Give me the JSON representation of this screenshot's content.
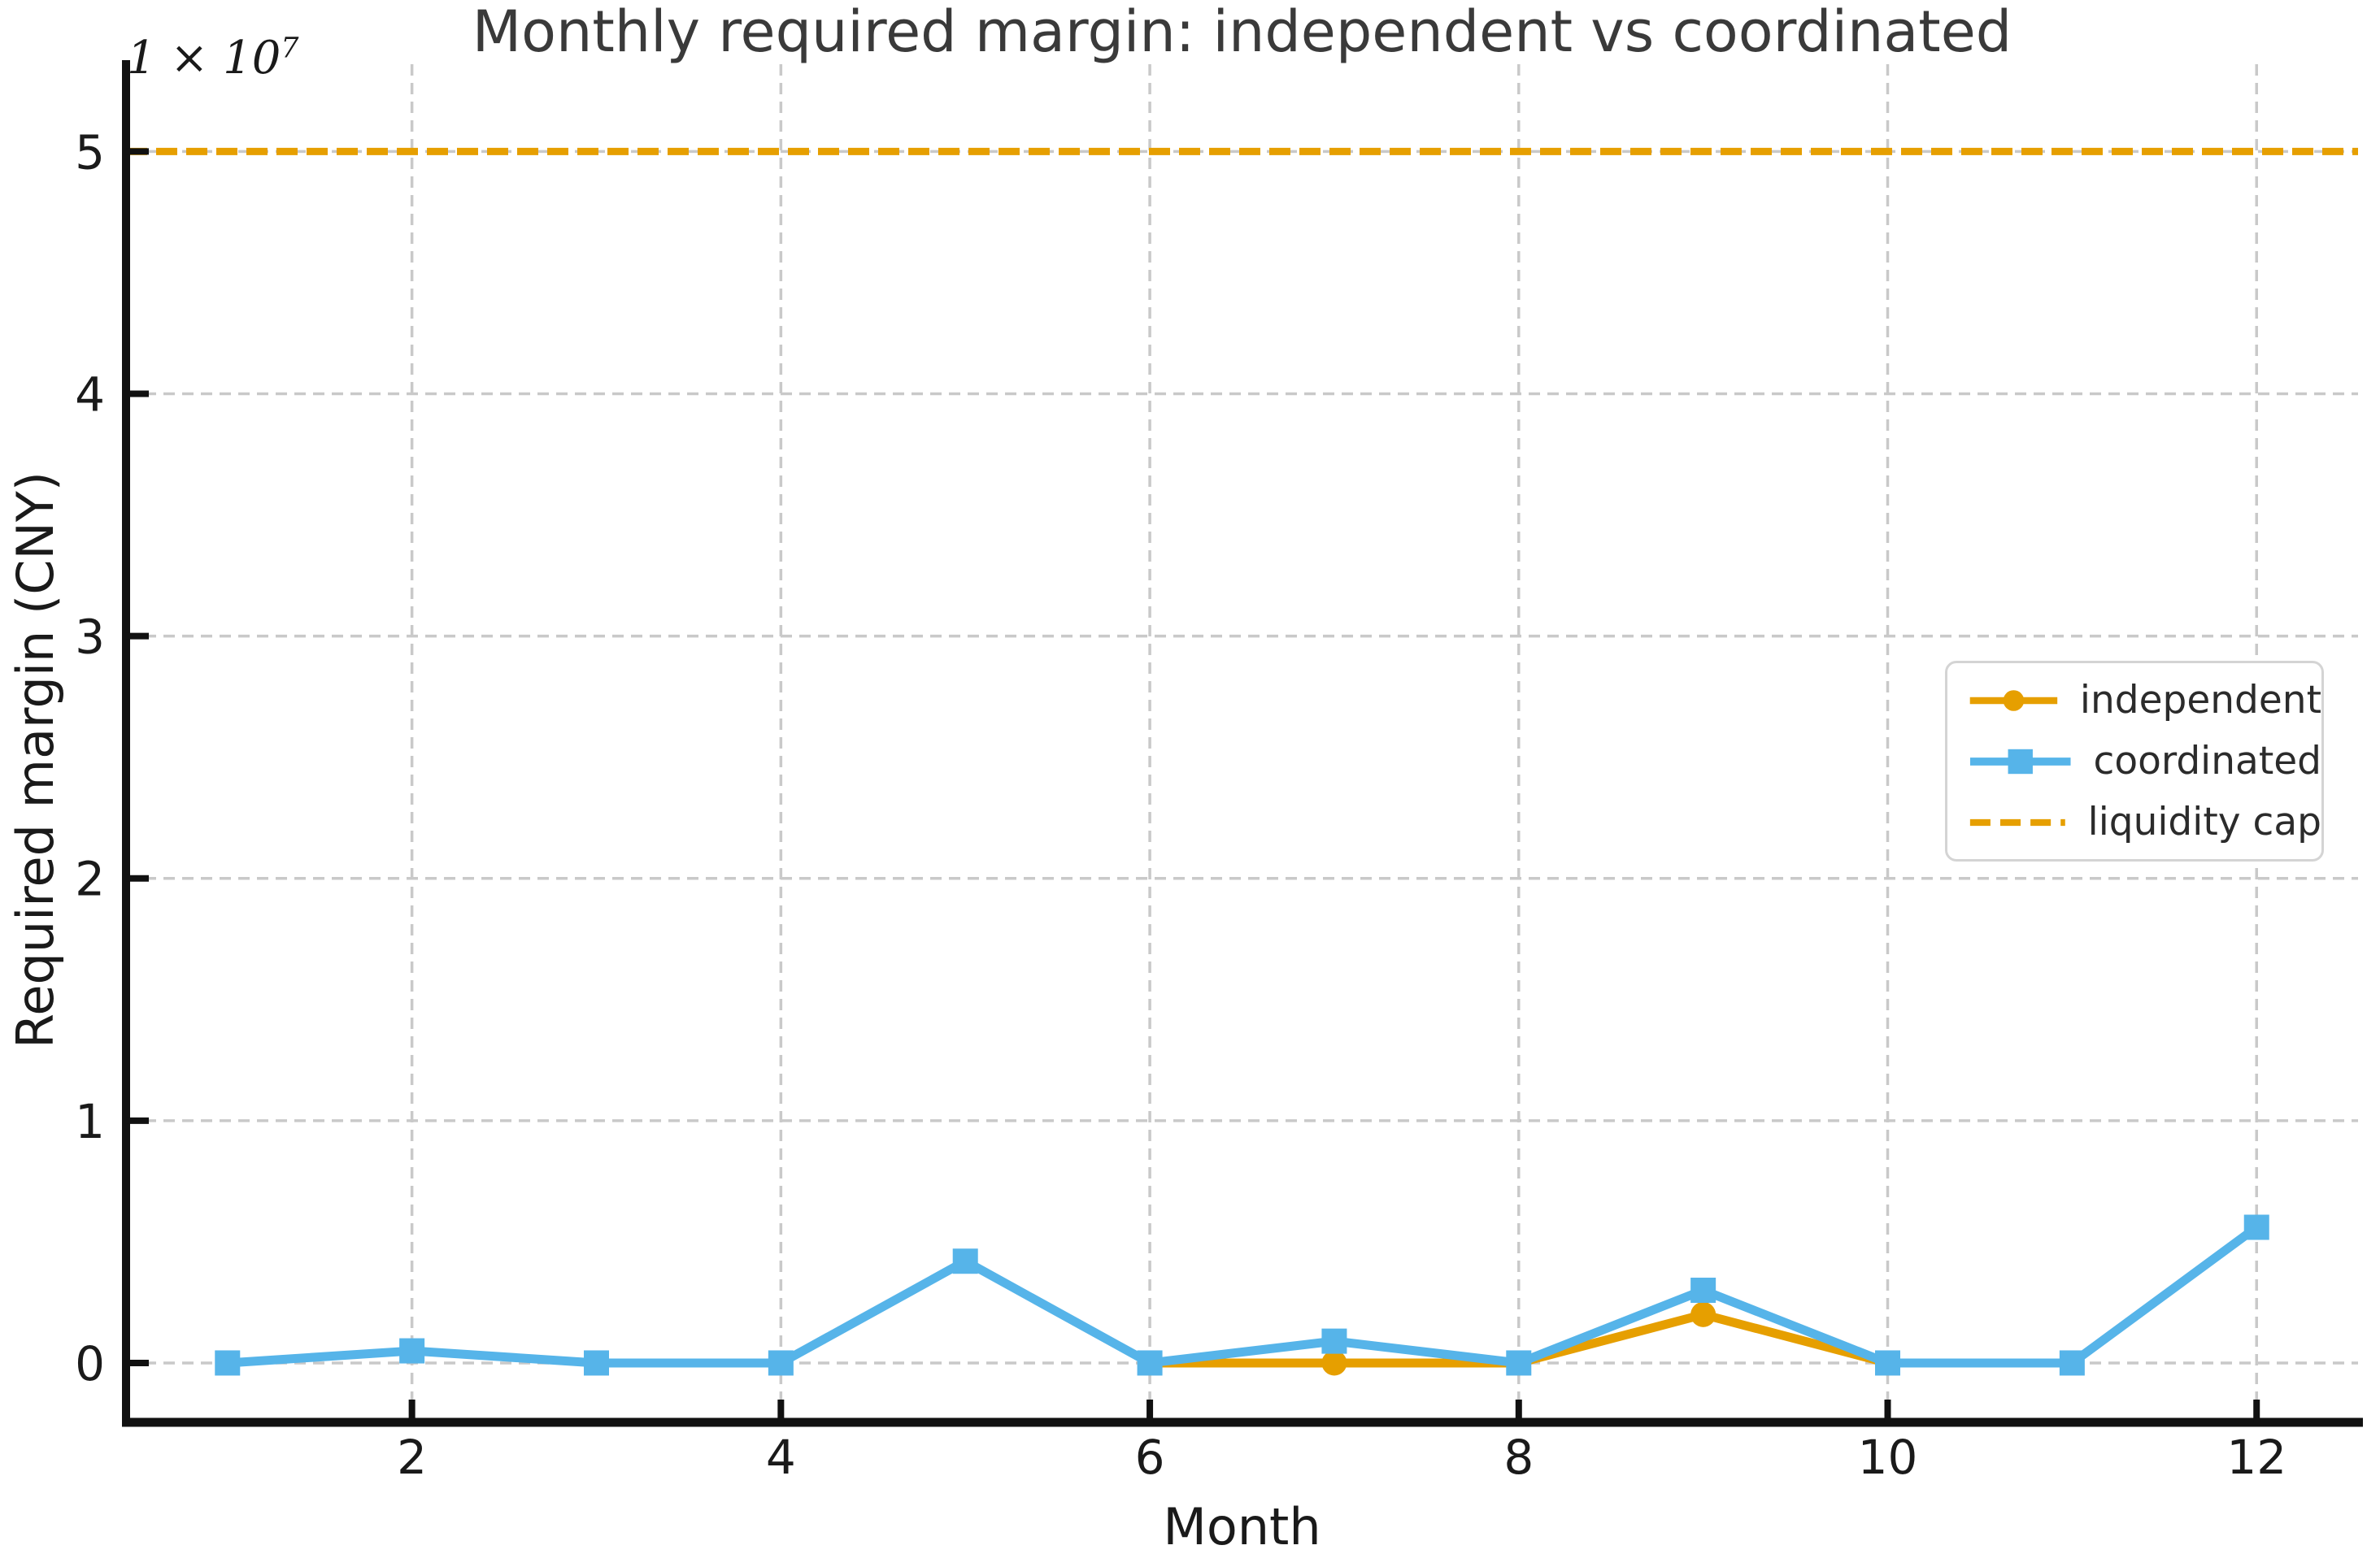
{
  "title": "Monthly required margin: independent vs coordinated",
  "axes": {
    "xlabel": "Month",
    "ylabel": "Required margin (CNY)",
    "offset_text": {
      "base": "1 × 10",
      "exponent": "7"
    }
  },
  "chart_data": {
    "type": "line",
    "title": "Monthly required margin: independent vs coordinated",
    "xlabel": "Month",
    "ylabel": "Required margin (CNY)",
    "x": [
      1,
      2,
      3,
      4,
      5,
      6,
      7,
      8,
      9,
      10,
      11,
      12
    ],
    "series": [
      {
        "name": "independent",
        "color": "#E69F00",
        "marker": "circle",
        "line_style": "solid",
        "values": [
          null,
          null,
          null,
          null,
          null,
          0,
          0,
          0,
          2000000,
          0,
          null,
          null
        ]
      },
      {
        "name": "coordinated",
        "color": "#56B4E9",
        "marker": "square",
        "line_style": "solid",
        "values": [
          0,
          500000,
          0,
          0,
          4200000,
          0,
          900000,
          0,
          3000000,
          0,
          0,
          5600000
        ]
      }
    ],
    "reference_lines": [
      {
        "name": "liquidity cap",
        "value": 50000000,
        "color": "#E69F00",
        "line_style": "dashed"
      }
    ],
    "xlim": [
      0.45,
      12.55
    ],
    "ylim": [
      -2450000,
      53600000
    ],
    "xticks": [
      2,
      4,
      6,
      8,
      10,
      12
    ],
    "xtick_labels": [
      "2",
      "4",
      "6",
      "8",
      "10",
      "12"
    ],
    "yticks": [
      0,
      10000000,
      20000000,
      30000000,
      40000000,
      50000000
    ],
    "ytick_labels": [
      "0",
      "1",
      "2",
      "3",
      "4",
      "5"
    ],
    "y_scale_factor": "1 × 10⁷",
    "grid": true,
    "legend_position": "center right"
  },
  "legend": {
    "entries": [
      {
        "label": "independent",
        "color": "#E69F00",
        "sample": "line-circle"
      },
      {
        "label": "coordinated",
        "color": "#56B4E9",
        "sample": "line-square"
      },
      {
        "label": "liquidity cap",
        "color": "#E69F00",
        "sample": "dashed-line"
      }
    ]
  },
  "colors": {
    "background": "#ffffff",
    "grid": "#c9c9c9",
    "spine": "#111111",
    "tick_text": "#1a1a1a",
    "title_text": "#3a3a3a",
    "legend_border": "#d4d4d4",
    "orange": "#E69F00",
    "blue": "#56B4E9"
  }
}
